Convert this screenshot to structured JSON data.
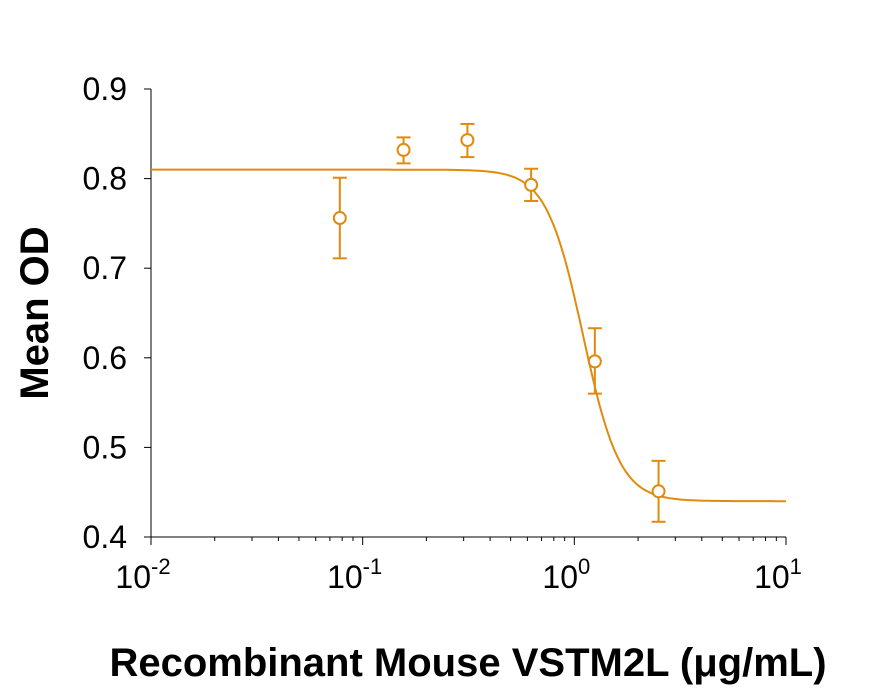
{
  "chart_data": {
    "type": "scatter",
    "xlabel": "Recombinant Mouse VSTM2L (μg/mL)",
    "ylabel": "Mean OD",
    "x_scale": "log",
    "xlim": [
      0.01,
      10
    ],
    "ylim": [
      0.4,
      0.9
    ],
    "x_ticks": [
      {
        "base": "10",
        "exp": "-2"
      },
      {
        "base": "10",
        "exp": "-1"
      },
      {
        "base": "10",
        "exp": "0"
      },
      {
        "base": "10",
        "exp": "1"
      }
    ],
    "y_ticks": [
      "0.4",
      "0.5",
      "0.6",
      "0.7",
      "0.8",
      "0.9"
    ],
    "grid": false,
    "color": "#E08A0E",
    "points": [
      {
        "x": 0.078,
        "y": 0.756,
        "err_low": 0.711,
        "err_high": 0.801
      },
      {
        "x": 0.156,
        "y": 0.832,
        "err_low": 0.817,
        "err_high": 0.846
      },
      {
        "x": 0.3125,
        "y": 0.843,
        "err_low": 0.824,
        "err_high": 0.861
      },
      {
        "x": 0.625,
        "y": 0.793,
        "err_low": 0.775,
        "err_high": 0.811
      },
      {
        "x": 1.25,
        "y": 0.596,
        "err_low": 0.56,
        "err_high": 0.633
      },
      {
        "x": 2.5,
        "y": 0.451,
        "err_low": 0.417,
        "err_high": 0.485
      }
    ],
    "fit": {
      "model": "4PL",
      "top": 0.81,
      "bottom": 0.44,
      "ec50": 1.1,
      "hill": 5
    }
  }
}
